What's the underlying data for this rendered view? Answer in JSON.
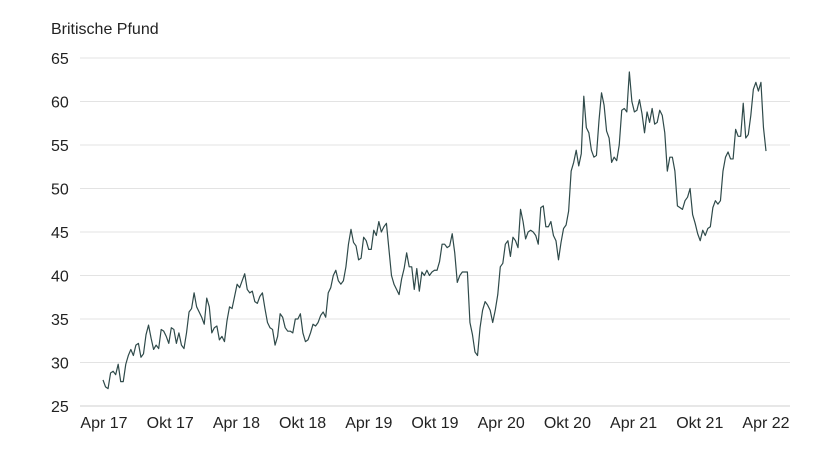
{
  "chart_data": {
    "type": "line",
    "ylabel": "Britische Pfund",
    "ylim": [
      25,
      65
    ],
    "yticks": [
      25,
      30,
      35,
      40,
      45,
      50,
      55,
      60,
      65
    ],
    "xticks": [
      "Apr 17",
      "Okt 17",
      "Apr 18",
      "Okt 18",
      "Apr 19",
      "Okt 19",
      "Apr 20",
      "Okt 20",
      "Apr 21",
      "Okt 21",
      "Apr 22"
    ],
    "grid": true,
    "line_color": "#2f4a4a",
    "series": [
      {
        "values": [
          28.0,
          27.2,
          27.0,
          28.8,
          29.0,
          28.6,
          29.8,
          27.8,
          27.8,
          29.8,
          30.8,
          31.5,
          30.8,
          32.0,
          32.2,
          30.6,
          31.0,
          33.2,
          34.3,
          32.8,
          31.5,
          32.0,
          31.6,
          33.8,
          33.6,
          33.0,
          32.2,
          34.0,
          33.8,
          32.2,
          33.4,
          32.0,
          31.6,
          33.4,
          35.8,
          36.2,
          38.0,
          36.4,
          35.8,
          35.2,
          34.4,
          37.4,
          36.4,
          33.4,
          34.0,
          34.2,
          32.6,
          33.0,
          32.4,
          34.8,
          36.4,
          36.2,
          37.6,
          39.0,
          38.6,
          39.4,
          40.2,
          38.4,
          38.0,
          38.2,
          37.0,
          36.8,
          37.6,
          38.0,
          36.2,
          34.6,
          34.0,
          33.8,
          32.0,
          33.0,
          35.6,
          35.2,
          34.0,
          33.6,
          33.6,
          33.4,
          35.0,
          35.0,
          35.6,
          33.4,
          32.4,
          32.6,
          33.4,
          34.4,
          34.2,
          34.6,
          35.4,
          35.8,
          35.2,
          38.0,
          38.6,
          40.0,
          40.6,
          39.4,
          39.0,
          39.4,
          41.0,
          43.6,
          45.3,
          43.8,
          43.4,
          41.8,
          42.0,
          44.4,
          44.0,
          43.0,
          43.0,
          45.2,
          44.6,
          46.2,
          45.0,
          45.6,
          46.0,
          43.0,
          40.0,
          39.0,
          38.4,
          37.8,
          39.6,
          40.8,
          42.6,
          41.0,
          41.0,
          38.4,
          40.8,
          38.2,
          40.4,
          40.0,
          40.6,
          40.0,
          40.4,
          40.6,
          40.6,
          41.6,
          43.6,
          43.6,
          43.2,
          43.4,
          44.8,
          42.6,
          39.2,
          40.0,
          40.4,
          40.4,
          40.4,
          34.6,
          33.2,
          31.2,
          30.8,
          34.0,
          36.0,
          37.0,
          36.6,
          36.0,
          34.6,
          36.0,
          37.8,
          41.0,
          41.4,
          43.6,
          44.0,
          42.2,
          44.4,
          44.0,
          43.2,
          47.6,
          46.2,
          44.2,
          45.0,
          45.2,
          45.0,
          44.6,
          43.6,
          47.8,
          48.0,
          45.6,
          45.6,
          46.2,
          44.6,
          44.0,
          41.8,
          43.8,
          45.4,
          45.8,
          47.4,
          52.0,
          53.0,
          54.4,
          52.6,
          54.0,
          60.6,
          57.0,
          56.4,
          54.4,
          53.6,
          53.8,
          57.8,
          61.0,
          59.6,
          56.6,
          55.8,
          53.0,
          53.6,
          53.2,
          55.0,
          59.0,
          59.2,
          58.8,
          63.4,
          60.0,
          58.8,
          59.0,
          60.2,
          58.6,
          56.4,
          58.8,
          57.6,
          59.2,
          57.4,
          57.6,
          59.0,
          58.4,
          56.4,
          52.0,
          53.6,
          53.6,
          52.0,
          48.0,
          47.8,
          47.6,
          48.6,
          49.0,
          50.0,
          47.0,
          46.0,
          44.8,
          44.0,
          45.2,
          44.6,
          45.4,
          45.6,
          47.8,
          48.6,
          48.2,
          48.6,
          52.0,
          53.6,
          54.2,
          53.4,
          53.4,
          56.8,
          56.0,
          56.0,
          59.8,
          55.8,
          56.2,
          58.4,
          61.4,
          62.2,
          61.2,
          62.2,
          57.0,
          54.3
        ]
      }
    ]
  }
}
